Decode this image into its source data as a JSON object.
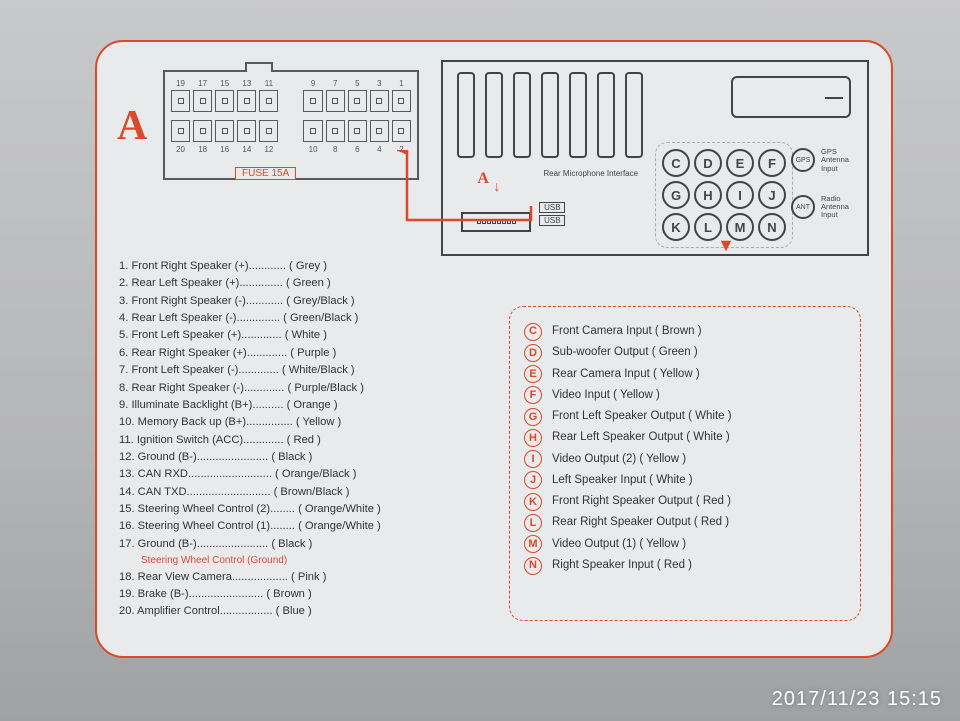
{
  "accent_color": "#d84a2a",
  "border_color": "#444444",
  "bg_card": "#e9eaeb",
  "connector": {
    "label": "A",
    "fuse": "FUSE 15A",
    "top_row_pins": [
      "19",
      "17",
      "15",
      "13",
      "11",
      "",
      "9",
      "7",
      "5",
      "3",
      "1"
    ],
    "bottom_row_pins": [
      "20",
      "18",
      "16",
      "14",
      "12",
      "",
      "10",
      "8",
      "6",
      "4",
      "2"
    ]
  },
  "device": {
    "rear_mic_label": "Rear Microphone Interface",
    "small_A": "A",
    "usb": [
      "USB",
      "USB"
    ],
    "letters": [
      "C",
      "D",
      "E",
      "F",
      "G",
      "H",
      "I",
      "J",
      "K",
      "L",
      "M",
      "N"
    ],
    "antennas": [
      {
        "code": "GPS",
        "label": "GPS Antenna Input"
      },
      {
        "code": "ANT",
        "label": "Radio Antenna Input"
      }
    ]
  },
  "pins": [
    {
      "n": "1",
      "name": "Front Right Speaker (+)",
      "color": "Grey"
    },
    {
      "n": "2",
      "name": "Rear Left Speaker (+)",
      "color": "Green"
    },
    {
      "n": "3",
      "name": "Front Right Speaker (-)",
      "color": "Grey/Black"
    },
    {
      "n": "4",
      "name": "Rear Left Speaker (-)",
      "color": "Green/Black"
    },
    {
      "n": "5",
      "name": "Front Left Speaker (+)",
      "color": "White"
    },
    {
      "n": "6",
      "name": "Rear Right Speaker (+)",
      "color": "Purple"
    },
    {
      "n": "7",
      "name": "Front Left Speaker (-)",
      "color": "White/Black"
    },
    {
      "n": "8",
      "name": "Rear Right Speaker (-)",
      "color": "Purple/Black"
    },
    {
      "n": "9",
      "name": "Illuminate Backlight (B+)",
      "color": "Orange"
    },
    {
      "n": "10",
      "name": "Memory Back up (B+)",
      "color": "Yellow"
    },
    {
      "n": "11",
      "name": "Ignition Switch (ACC)",
      "color": "Red"
    },
    {
      "n": "12",
      "name": "Ground (B-)",
      "color": "Black"
    },
    {
      "n": "13",
      "name": "CAN RXD",
      "color": "Orange/Black"
    },
    {
      "n": "14",
      "name": "CAN TXD",
      "color": "Brown/Black"
    },
    {
      "n": "15",
      "name": "Steering Wheel Control (2)",
      "color": "Orange/White"
    },
    {
      "n": "16",
      "name": "Steering Wheel Control (1)",
      "color": "Orange/White"
    },
    {
      "n": "17",
      "name": "Ground (B-)",
      "color": "Black",
      "note": "Steering Wheel Control (Ground)"
    },
    {
      "n": "18",
      "name": "Rear View Camera",
      "color": "Pink"
    },
    {
      "n": "19",
      "name": "Brake (B-)",
      "color": "Brown"
    },
    {
      "n": "20",
      "name": "Amplifier Control",
      "color": "Blue"
    }
  ],
  "letters": [
    {
      "k": "C",
      "name": "Front Camera Input",
      "color": "Brown"
    },
    {
      "k": "D",
      "name": "Sub-woofer Output",
      "color": "Green"
    },
    {
      "k": "E",
      "name": "Rear Camera Input",
      "color": "Yellow"
    },
    {
      "k": "F",
      "name": "Video Input",
      "color": "Yellow"
    },
    {
      "k": "G",
      "name": "Front Left Speaker Output",
      "color": "White"
    },
    {
      "k": "H",
      "name": "Rear Left Speaker Output",
      "color": "White"
    },
    {
      "k": "I",
      "name": "Video Output (2)",
      "color": "Yellow"
    },
    {
      "k": "J",
      "name": "Left Speaker Input",
      "color": "White"
    },
    {
      "k": "K",
      "name": "Front Right Speaker Output",
      "color": "Red"
    },
    {
      "k": "L",
      "name": "Rear Right Speaker Output",
      "color": "Red"
    },
    {
      "k": "M",
      "name": "Video Output (1)",
      "color": "Yellow"
    },
    {
      "k": "N",
      "name": "Right Speaker Input",
      "color": "Red"
    }
  ],
  "timestamp": "2017/11/23  15:15",
  "dot_leader_width": 38
}
